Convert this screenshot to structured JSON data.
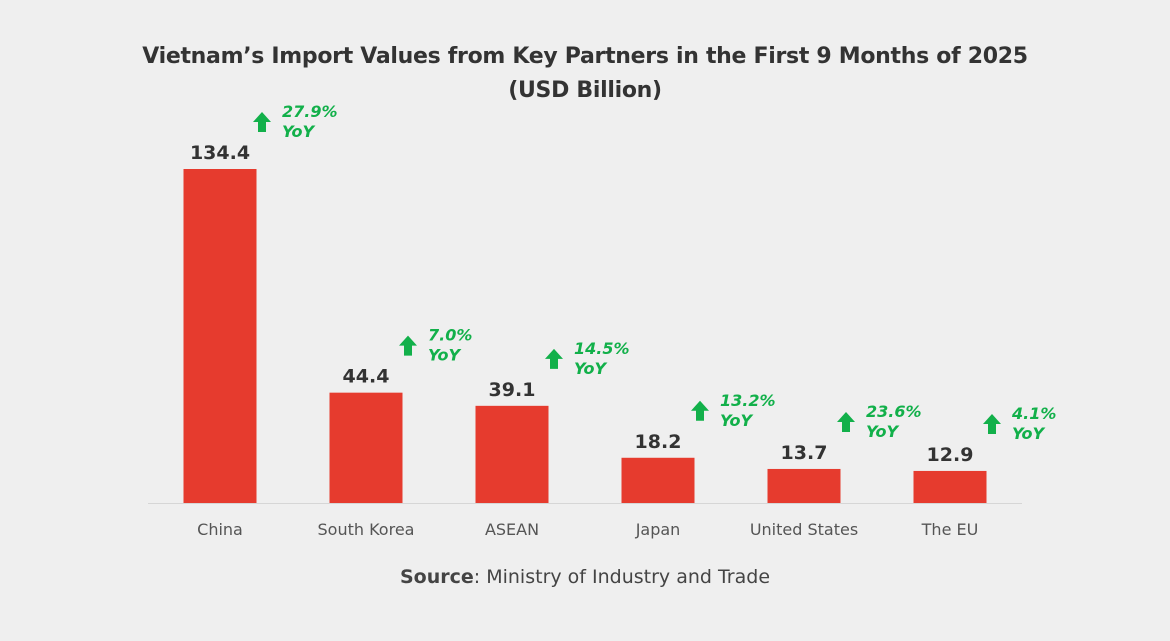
{
  "chart_data": {
    "type": "bar",
    "title_line1": "Vietnam’s Import Values from Key Partners in the First 9 Months of 2025",
    "title_line2": "(USD Billion)",
    "categories": [
      "China",
      "South Korea",
      "ASEAN",
      "Japan",
      "United States",
      "The EU"
    ],
    "values": [
      134.4,
      44.4,
      39.1,
      18.2,
      13.7,
      12.9
    ],
    "value_labels": [
      "134.4",
      "44.4",
      "39.1",
      "18.2",
      "13.7",
      "12.9"
    ],
    "yoy_labels": [
      "27.9%",
      "7.0%",
      "14.5%",
      "13.2%",
      "23.6%",
      "4.1%"
    ],
    "yoy_suffix": "YoY",
    "yoy_icon": "arrow-up-icon",
    "ylim": [
      0,
      134.4
    ],
    "grid": false,
    "colors": {
      "bar": "#e63b2e",
      "yoy": "#12b04a",
      "text": "#333333",
      "axis": "#d6d6d6"
    }
  },
  "source": {
    "label": "Source",
    "text": ": Ministry of Industry and Trade"
  }
}
